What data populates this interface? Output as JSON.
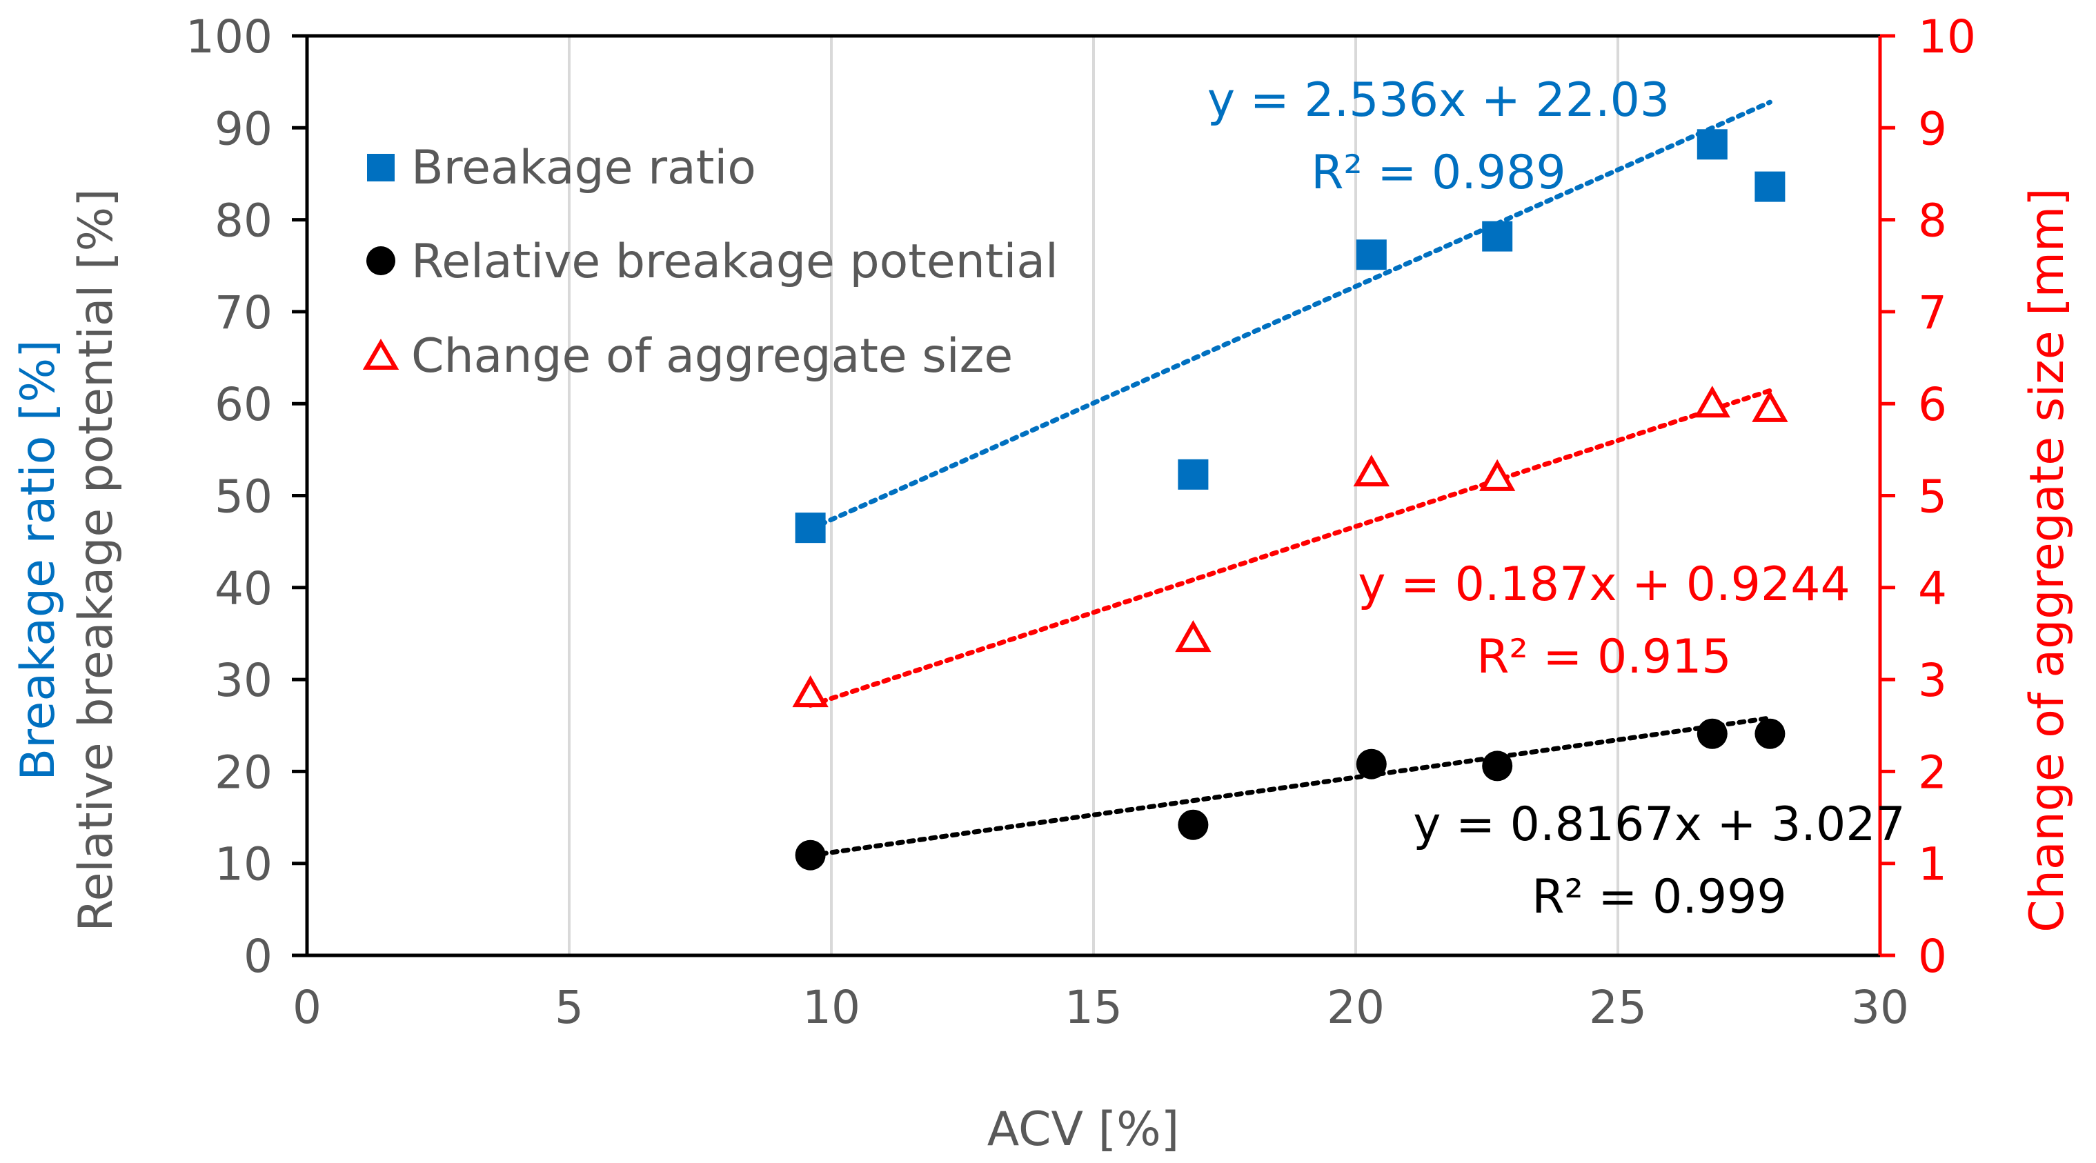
{
  "chart_data": {
    "type": "scatter",
    "x_axis": {
      "label": "ACV [%]",
      "min": 0,
      "max": 30,
      "step": 5,
      "ticks": [
        "0",
        "5",
        "10",
        "15",
        "20",
        "25",
        "30"
      ]
    },
    "y_axis_left": {
      "label_line1": "Breakage ratio [%]",
      "label_line2": "Relative breakage potential [%]",
      "min": 0,
      "max": 100,
      "step": 10,
      "ticks": [
        "0",
        "10",
        "20",
        "30",
        "40",
        "50",
        "60",
        "70",
        "80",
        "90",
        "100"
      ]
    },
    "y_axis_right": {
      "label": "Change of aggregate size [mm]",
      "min": 0,
      "max": 10,
      "step": 1,
      "ticks": [
        "0",
        "1",
        "2",
        "3",
        "4",
        "5",
        "6",
        "7",
        "8",
        "9",
        "10"
      ]
    },
    "grid": "vertical",
    "legend_position": "top-left",
    "series": [
      {
        "name": "Breakage ratio",
        "marker": "square",
        "color": "#0070C0",
        "axis": "left",
        "x": [
          9.6,
          16.9,
          20.3,
          22.7,
          26.8,
          27.9
        ],
        "y": [
          46.5,
          52.3,
          76.2,
          78.2,
          88.2,
          83.6
        ],
        "trendline": {
          "slope": 2.536,
          "intercept": 22.03,
          "x_range": [
            9.6,
            27.9
          ]
        },
        "equation": "y = 2.536x + 22.03",
        "r_squared": "R² = 0.989"
      },
      {
        "name": "Relative breakage potential",
        "marker": "circle",
        "color": "#000000",
        "axis": "left",
        "x": [
          9.6,
          16.9,
          20.3,
          22.7,
          26.8,
          27.9
        ],
        "y": [
          10.9,
          14.2,
          20.8,
          20.6,
          24.1,
          24.1
        ],
        "trendline": {
          "slope": 0.8167,
          "intercept": 3.027,
          "x_range": [
            9.6,
            27.9
          ]
        },
        "equation": "y = 0.8167x + 3.027",
        "r_squared": "R² = 0.999"
      },
      {
        "name": "Change of aggregate size",
        "marker": "triangle",
        "color": "#FF0000",
        "axis": "right",
        "x": [
          9.6,
          16.9,
          20.3,
          22.7,
          26.8,
          27.9
        ],
        "y": [
          2.85,
          3.45,
          5.25,
          5.2,
          6.0,
          5.95
        ],
        "trendline": {
          "slope": 0.187,
          "intercept": 0.9244,
          "x_range": [
            9.6,
            27.9
          ]
        },
        "equation": "y = 0.187x + 0.9244",
        "r_squared": "R² = 0.915"
      }
    ]
  }
}
